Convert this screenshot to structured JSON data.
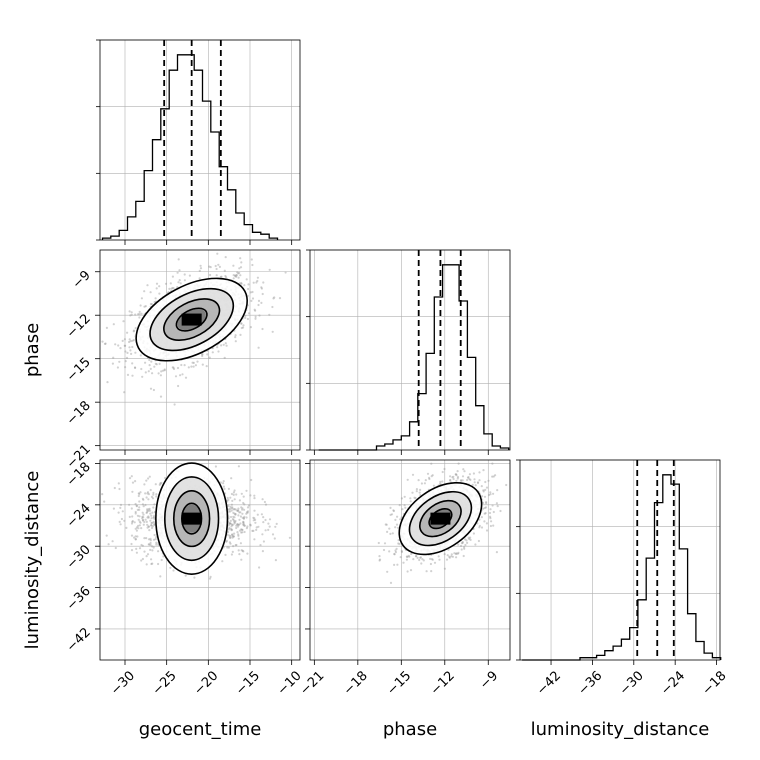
{
  "chart_data": {
    "type": "corner",
    "parameters": [
      "geocent_time",
      "phase",
      "luminosity_distance"
    ],
    "axis_labels": {
      "geocent_time": "geocent_time",
      "phase": "phase",
      "luminosity_distance": "luminosity_distance"
    },
    "ranges": {
      "geocent_time": [
        -33,
        -9
      ],
      "phase": [
        -21.3,
        -7.5
      ],
      "luminosity_distance": [
        -46.5,
        -17.5
      ]
    },
    "ticks": {
      "geocent_time": [
        -30,
        -25,
        -20,
        -15,
        -10
      ],
      "phase": [
        -21,
        -18,
        -15,
        -12,
        -9
      ],
      "luminosity_distance": [
        -42,
        -36,
        -30,
        -24,
        -18
      ]
    },
    "tick_labels": {
      "geocent_time": [
        "−30",
        "−25",
        "−20",
        "−15",
        "−10"
      ],
      "phase": [
        "−21",
        "−18",
        "−15",
        "−12",
        "−9"
      ],
      "luminosity_distance": [
        "−42",
        "−36",
        "−30",
        "−24",
        "−18"
      ]
    },
    "quantiles": {
      "geocent_time": [
        -25.3,
        -22.0,
        -18.5
      ],
      "phase": [
        -13.8,
        -12.3,
        -10.9
      ],
      "luminosity_distance": [
        -29.5,
        -26.6,
        -24.2
      ]
    },
    "histograms": {
      "geocent_time": {
        "bin_start": -32.7,
        "bin_width": 1.0,
        "counts": [
          1,
          2,
          5,
          12,
          20,
          36,
          52,
          68,
          88,
          96,
          96,
          88,
          72,
          56,
          38,
          26,
          14,
          8,
          4,
          3,
          1
        ]
      },
      "phase": {
        "bin_start": -20.7,
        "bin_width": 0.57,
        "counts": [
          0,
          0,
          0,
          0,
          0,
          0,
          0,
          2,
          3,
          5,
          7,
          14,
          28,
          48,
          76,
          92,
          92,
          74,
          46,
          22,
          8,
          2,
          1
        ]
      },
      "luminosity_distance": {
        "bin_start": -46.2,
        "bin_width": 1.2,
        "counts": [
          0,
          0,
          0,
          0,
          0,
          0,
          0,
          1,
          1,
          2,
          4,
          6,
          9,
          14,
          26,
          44,
          68,
          80,
          76,
          48,
          20,
          8,
          3,
          1
        ]
      }
    },
    "correlations": {
      "phase_vs_geocent_time": 0.45,
      "luminosity_distance_vs_geocent_time": 0.0,
      "luminosity_distance_vs_phase": 0.4
    },
    "centers": {
      "geocent_time": -22.0,
      "phase": -12.3,
      "luminosity_distance": -26.0
    },
    "grid": true
  }
}
